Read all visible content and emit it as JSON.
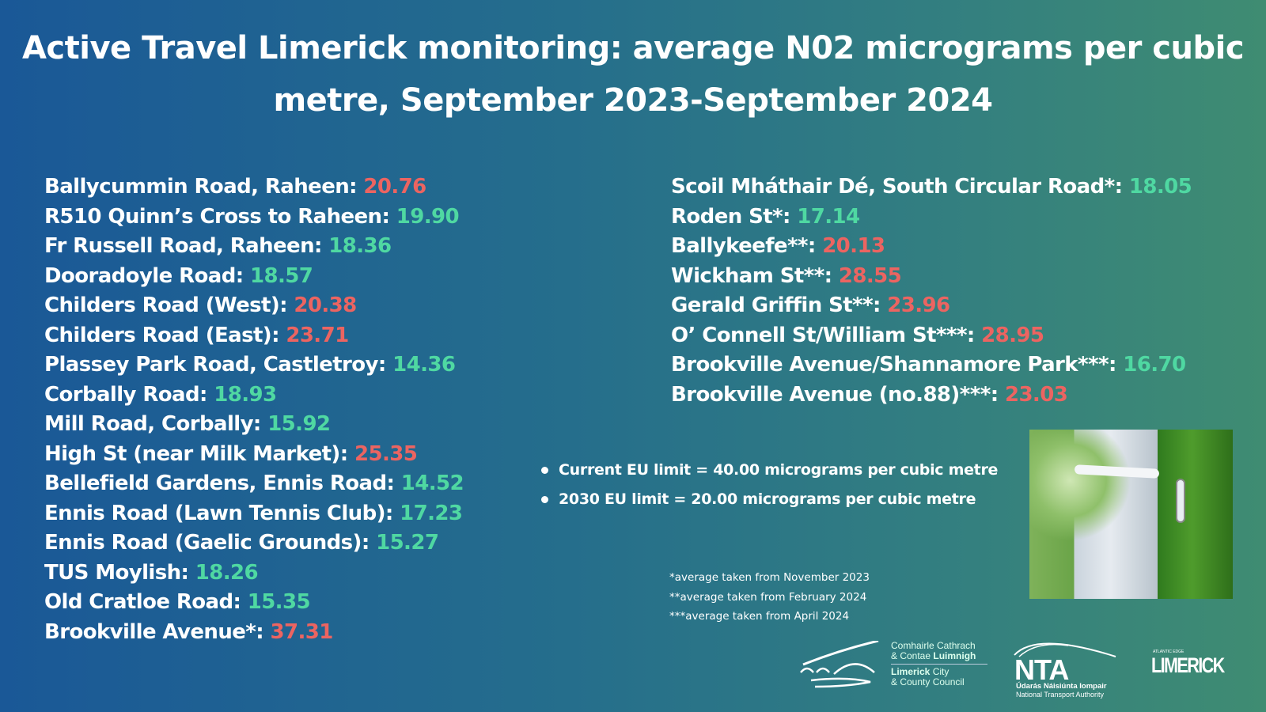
{
  "title": "Active Travel Limerick monitoring: average N02 micrograms per cubic metre, September 2023-September 2024",
  "colors": {
    "above_2030_limit": "#ec6461",
    "below_2030_limit": "#4fd8a2"
  },
  "left_sites": [
    {
      "label": "Ballycummin Road, Raheen: ",
      "value": "20.76",
      "status": "red"
    },
    {
      "label": "R510 Quinn’s Cross to Raheen: ",
      "value": "19.90",
      "status": "green"
    },
    {
      "label": "Fr Russell Road, Raheen: ",
      "value": "18.36",
      "status": "green"
    },
    {
      "label": "Dooradoyle Road: ",
      "value": "18.57",
      "status": "green"
    },
    {
      "label": "Childers Road (West): ",
      "value": "20.38",
      "status": "red"
    },
    {
      "label": "Childers Road (East): ",
      "value": "23.71",
      "status": "red"
    },
    {
      "label": "Plassey Park Road, Castletroy: ",
      "value": "14.36",
      "status": "green"
    },
    {
      "label": "Corbally Road: ",
      "value": "18.93",
      "status": "green"
    },
    {
      "label": "Mill Road, Corbally: ",
      "value": "15.92",
      "status": "green"
    },
    {
      "label": "High St (near Milk Market): ",
      "value": "25.35",
      "status": "red"
    },
    {
      "label": "Bellefield Gardens, Ennis Road: ",
      "value": "14.52",
      "status": "green"
    },
    {
      "label": "Ennis Road (Lawn Tennis Club): ",
      "value": "17.23",
      "status": "green"
    },
    {
      "label": "Ennis Road (Gaelic Grounds): ",
      "value": "15.27",
      "status": "green"
    },
    {
      "label": "TUS Moylish: ",
      "value": "18.26",
      "status": "green"
    },
    {
      "label": "Old Cratloe Road: ",
      "value": "15.35",
      "status": "green"
    },
    {
      "label": "Brookville Avenue*: ",
      "value": "37.31",
      "status": "red"
    }
  ],
  "right_sites": [
    {
      "label": "Scoil Mháthair Dé, South Circular Road*: ",
      "value": "18.05",
      "status": "green"
    },
    {
      "label": "Roden St*: ",
      "value": "17.14",
      "status": "green"
    },
    {
      "label": "Ballykeefe**: ",
      "value": "20.13",
      "status": "red"
    },
    {
      "label": "Wickham St**: ",
      "value": "28.55",
      "status": "red"
    },
    {
      "label": "Gerald Griffin St**: ",
      "value": "23.96",
      "status": "red"
    },
    {
      "label": "O’ Connell St/William St***: ",
      "value": "28.95",
      "status": "red"
    },
    {
      "label": "Brookville Avenue/Shannamore Park***: ",
      "value": "16.70",
      "status": "green"
    },
    {
      "label": "Brookville Avenue (no.88)***: ",
      "value": "23.03",
      "status": "red"
    }
  ],
  "limits": [
    "Current EU limit = 40.00 micrograms per cubic metre",
    "2030 EU limit = 20.00 micrograms per cubic metre"
  ],
  "footnotes": [
    "*average taken from November 2023",
    "**average taken from February 2024",
    "***average taken from April 2024"
  ],
  "logos": {
    "council": {
      "line1": "Comhairle Cathrach",
      "line2a": "& Contae ",
      "line2b": "Luimnigh",
      "line3a": "Limerick",
      "line3b": " City",
      "line4": "& County Council"
    },
    "nta": {
      "name": "NTA",
      "irish": "Údarás Náisiúnta Iompair",
      "english": "National Transport Authority"
    },
    "limerick": {
      "name": "LIMERICK",
      "tag": "ATLANTIC EDGE"
    }
  }
}
